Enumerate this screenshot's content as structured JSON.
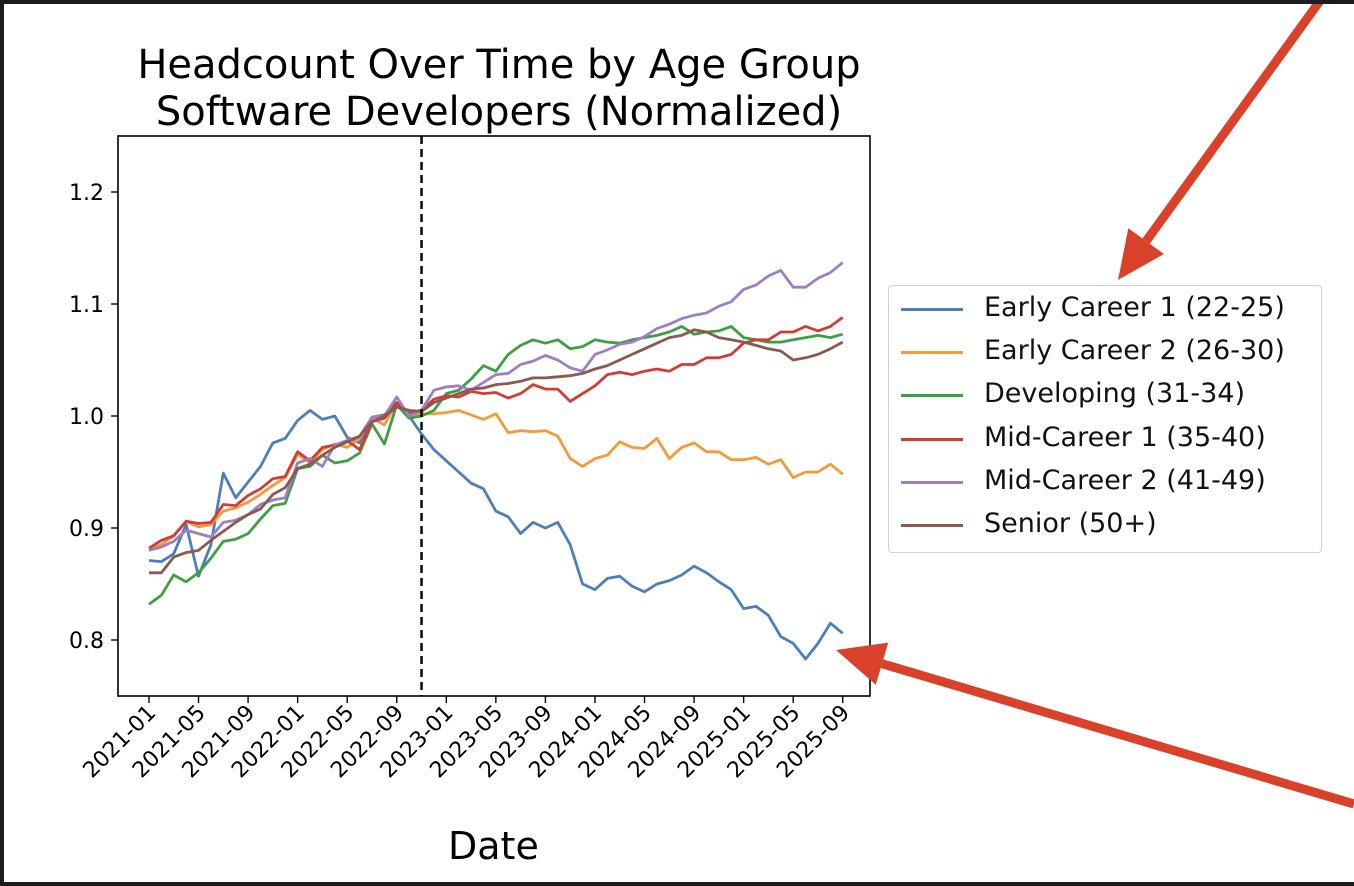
{
  "chart_data": {
    "type": "line",
    "title": "Headcount Over Time by Age Group",
    "subtitle": "Software Developers (Normalized)",
    "xlabel": "Date",
    "ylabel": "",
    "ylim": [
      0.75,
      1.25
    ],
    "yticks": [
      "0.8",
      "0.9",
      "1.0",
      "1.1",
      "1.2"
    ],
    "xticks": [
      "2021-01",
      "2021-05",
      "2021-09",
      "2022-01",
      "2022-05",
      "2022-09",
      "2023-01",
      "2023-05",
      "2023-09",
      "2024-01",
      "2024-05",
      "2024-09",
      "2025-01",
      "2025-05",
      "2025-09"
    ],
    "xlim": [
      "2020-10",
      "2025-12"
    ],
    "grid": false,
    "legend_position": "right",
    "reference_line": {
      "x": "2022-11",
      "style": "dashed"
    },
    "x": [
      "2021-01",
      "2021-02",
      "2021-03",
      "2021-04",
      "2021-05",
      "2021-06",
      "2021-07",
      "2021-08",
      "2021-09",
      "2021-10",
      "2021-11",
      "2021-12",
      "2022-01",
      "2022-02",
      "2022-03",
      "2022-04",
      "2022-05",
      "2022-06",
      "2022-07",
      "2022-08",
      "2022-09",
      "2022-10",
      "2022-11",
      "2022-12",
      "2023-01",
      "2023-02",
      "2023-03",
      "2023-04",
      "2023-05",
      "2023-06",
      "2023-07",
      "2023-08",
      "2023-09",
      "2023-10",
      "2023-11",
      "2023-12",
      "2024-01",
      "2024-02",
      "2024-03",
      "2024-04",
      "2024-05",
      "2024-06",
      "2024-07",
      "2024-08",
      "2024-09",
      "2024-10",
      "2024-11",
      "2024-12",
      "2025-01",
      "2025-02",
      "2025-03",
      "2025-04",
      "2025-05",
      "2025-06",
      "2025-07",
      "2025-08",
      "2025-09"
    ],
    "series": [
      {
        "name": "Early Career 1 (22-25)",
        "color": "#4c7fb8",
        "values": [
          0.871,
          0.87,
          0.877,
          0.903,
          0.857,
          0.885,
          0.949,
          0.927,
          0.941,
          0.955,
          0.976,
          0.98,
          0.996,
          1.005,
          0.997,
          1.0,
          0.981,
          0.976,
          0.999,
          1.001,
          1.012,
          1.0,
          0.984,
          0.97,
          0.96,
          0.95,
          0.94,
          0.935,
          0.915,
          0.91,
          0.895,
          0.905,
          0.9,
          0.905,
          0.885,
          0.85,
          0.845,
          0.855,
          0.857,
          0.848,
          0.843,
          0.85,
          0.853,
          0.858,
          0.866,
          0.86,
          0.852,
          0.845,
          0.828,
          0.83,
          0.822,
          0.803,
          0.797,
          0.783,
          0.797,
          0.815,
          0.806
        ]
      },
      {
        "name": "Early Career 2 (26-30)",
        "color": "#f39a3a",
        "values": [
          0.882,
          0.885,
          0.893,
          0.906,
          0.901,
          0.903,
          0.915,
          0.918,
          0.923,
          0.93,
          0.938,
          0.945,
          0.966,
          0.958,
          0.97,
          0.975,
          0.972,
          0.98,
          0.998,
          0.992,
          1.012,
          1.0,
          1.002,
          1.002,
          1.003,
          1.005,
          1.001,
          0.997,
          1.002,
          0.985,
          0.987,
          0.986,
          0.987,
          0.982,
          0.962,
          0.955,
          0.962,
          0.965,
          0.977,
          0.972,
          0.971,
          0.98,
          0.962,
          0.972,
          0.976,
          0.968,
          0.968,
          0.961,
          0.961,
          0.963,
          0.957,
          0.961,
          0.945,
          0.95,
          0.95,
          0.957,
          0.948
        ]
      },
      {
        "name": "Developing (31-34)",
        "color": "#3d9e44",
        "values": [
          0.832,
          0.84,
          0.858,
          0.852,
          0.86,
          0.873,
          0.888,
          0.89,
          0.895,
          0.908,
          0.92,
          0.922,
          0.953,
          0.955,
          0.965,
          0.958,
          0.96,
          0.967,
          0.993,
          0.975,
          1.01,
          0.998,
          1.0,
          1.005,
          1.02,
          1.023,
          1.033,
          1.045,
          1.04,
          1.055,
          1.063,
          1.068,
          1.065,
          1.068,
          1.06,
          1.062,
          1.068,
          1.066,
          1.065,
          1.068,
          1.07,
          1.072,
          1.075,
          1.08,
          1.073,
          1.075,
          1.076,
          1.08,
          1.07,
          1.068,
          1.066,
          1.066,
          1.068,
          1.07,
          1.072,
          1.07,
          1.073
        ]
      },
      {
        "name": "Mid-Career 1 (35-40)",
        "color": "#d33b35",
        "values": [
          0.882,
          0.889,
          0.893,
          0.906,
          0.904,
          0.905,
          0.921,
          0.92,
          0.929,
          0.935,
          0.944,
          0.946,
          0.968,
          0.96,
          0.972,
          0.974,
          0.978,
          0.97,
          0.995,
          0.998,
          1.012,
          1.003,
          1.005,
          1.015,
          1.018,
          1.017,
          1.022,
          1.02,
          1.021,
          1.016,
          1.02,
          1.028,
          1.024,
          1.024,
          1.013,
          1.02,
          1.027,
          1.037,
          1.039,
          1.037,
          1.04,
          1.042,
          1.04,
          1.046,
          1.046,
          1.052,
          1.052,
          1.055,
          1.065,
          1.068,
          1.068,
          1.075,
          1.075,
          1.08,
          1.076,
          1.08,
          1.088
        ]
      },
      {
        "name": "Mid-Career 2 (41-49)",
        "color": "#9c7fc4",
        "values": [
          0.88,
          0.883,
          0.888,
          0.898,
          0.895,
          0.892,
          0.905,
          0.907,
          0.912,
          0.921,
          0.925,
          0.927,
          0.958,
          0.962,
          0.955,
          0.974,
          0.978,
          0.982,
          0.999,
          1.0,
          1.017,
          1.0,
          1.005,
          1.023,
          1.026,
          1.027,
          1.023,
          1.03,
          1.037,
          1.038,
          1.046,
          1.049,
          1.054,
          1.05,
          1.043,
          1.04,
          1.055,
          1.059,
          1.064,
          1.066,
          1.071,
          1.078,
          1.082,
          1.087,
          1.09,
          1.092,
          1.098,
          1.102,
          1.113,
          1.117,
          1.125,
          1.13,
          1.115,
          1.115,
          1.123,
          1.128,
          1.137
        ]
      },
      {
        "name": "Senior (50+)",
        "color": "#8a5a4f",
        "values": [
          0.86,
          0.86,
          0.874,
          0.878,
          0.88,
          0.889,
          0.897,
          0.905,
          0.912,
          0.917,
          0.93,
          0.936,
          0.953,
          0.957,
          0.965,
          0.972,
          0.977,
          0.982,
          0.995,
          1.0,
          1.008,
          1.005,
          1.004,
          1.012,
          1.016,
          1.02,
          1.024,
          1.025,
          1.028,
          1.029,
          1.031,
          1.034,
          1.034,
          1.035,
          1.036,
          1.038,
          1.042,
          1.045,
          1.05,
          1.055,
          1.06,
          1.065,
          1.07,
          1.072,
          1.077,
          1.075,
          1.07,
          1.068,
          1.066,
          1.063,
          1.06,
          1.058,
          1.05,
          1.052,
          1.055,
          1.06,
          1.066
        ]
      }
    ]
  }
}
